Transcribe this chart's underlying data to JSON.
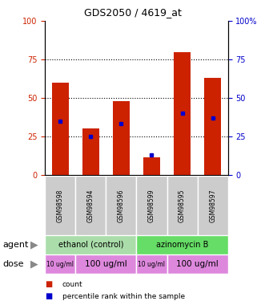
{
  "title": "GDS2050 / 4619_at",
  "samples": [
    "GSM98598",
    "GSM98594",
    "GSM98596",
    "GSM98599",
    "GSM98595",
    "GSM98597"
  ],
  "count_values": [
    60,
    30,
    48,
    11,
    80,
    63
  ],
  "percentile_values": [
    35,
    25,
    33,
    13,
    40,
    37
  ],
  "bar_color": "#cc2200",
  "percentile_color": "#0000cc",
  "ylim": [
    0,
    100
  ],
  "yticks": [
    0,
    25,
    50,
    75,
    100
  ],
  "left_ycolor": "#cc2200",
  "right_ycolor": "#0000cc",
  "agent_labels": [
    {
      "label": "ethanol (control)",
      "start": 0,
      "end": 3,
      "color": "#aaddaa"
    },
    {
      "label": "azinomycin B",
      "start": 3,
      "end": 6,
      "color": "#66dd66"
    }
  ],
  "dose_labels": [
    {
      "label": "10 ug/ml",
      "start": 0,
      "end": 1,
      "color": "#dd88dd",
      "fontsize": 5.5
    },
    {
      "label": "100 ug/ml",
      "start": 1,
      "end": 3,
      "color": "#dd88dd",
      "fontsize": 7.5
    },
    {
      "label": "10 ug/ml",
      "start": 3,
      "end": 4,
      "color": "#dd88dd",
      "fontsize": 5.5
    },
    {
      "label": "100 ug/ml",
      "start": 4,
      "end": 6,
      "color": "#dd88dd",
      "fontsize": 7.5
    }
  ],
  "legend_items": [
    {
      "color": "#cc2200",
      "label": "count"
    },
    {
      "color": "#0000cc",
      "label": "percentile rank within the sample"
    }
  ],
  "sample_box_color": "#cccccc",
  "bar_width": 0.55
}
